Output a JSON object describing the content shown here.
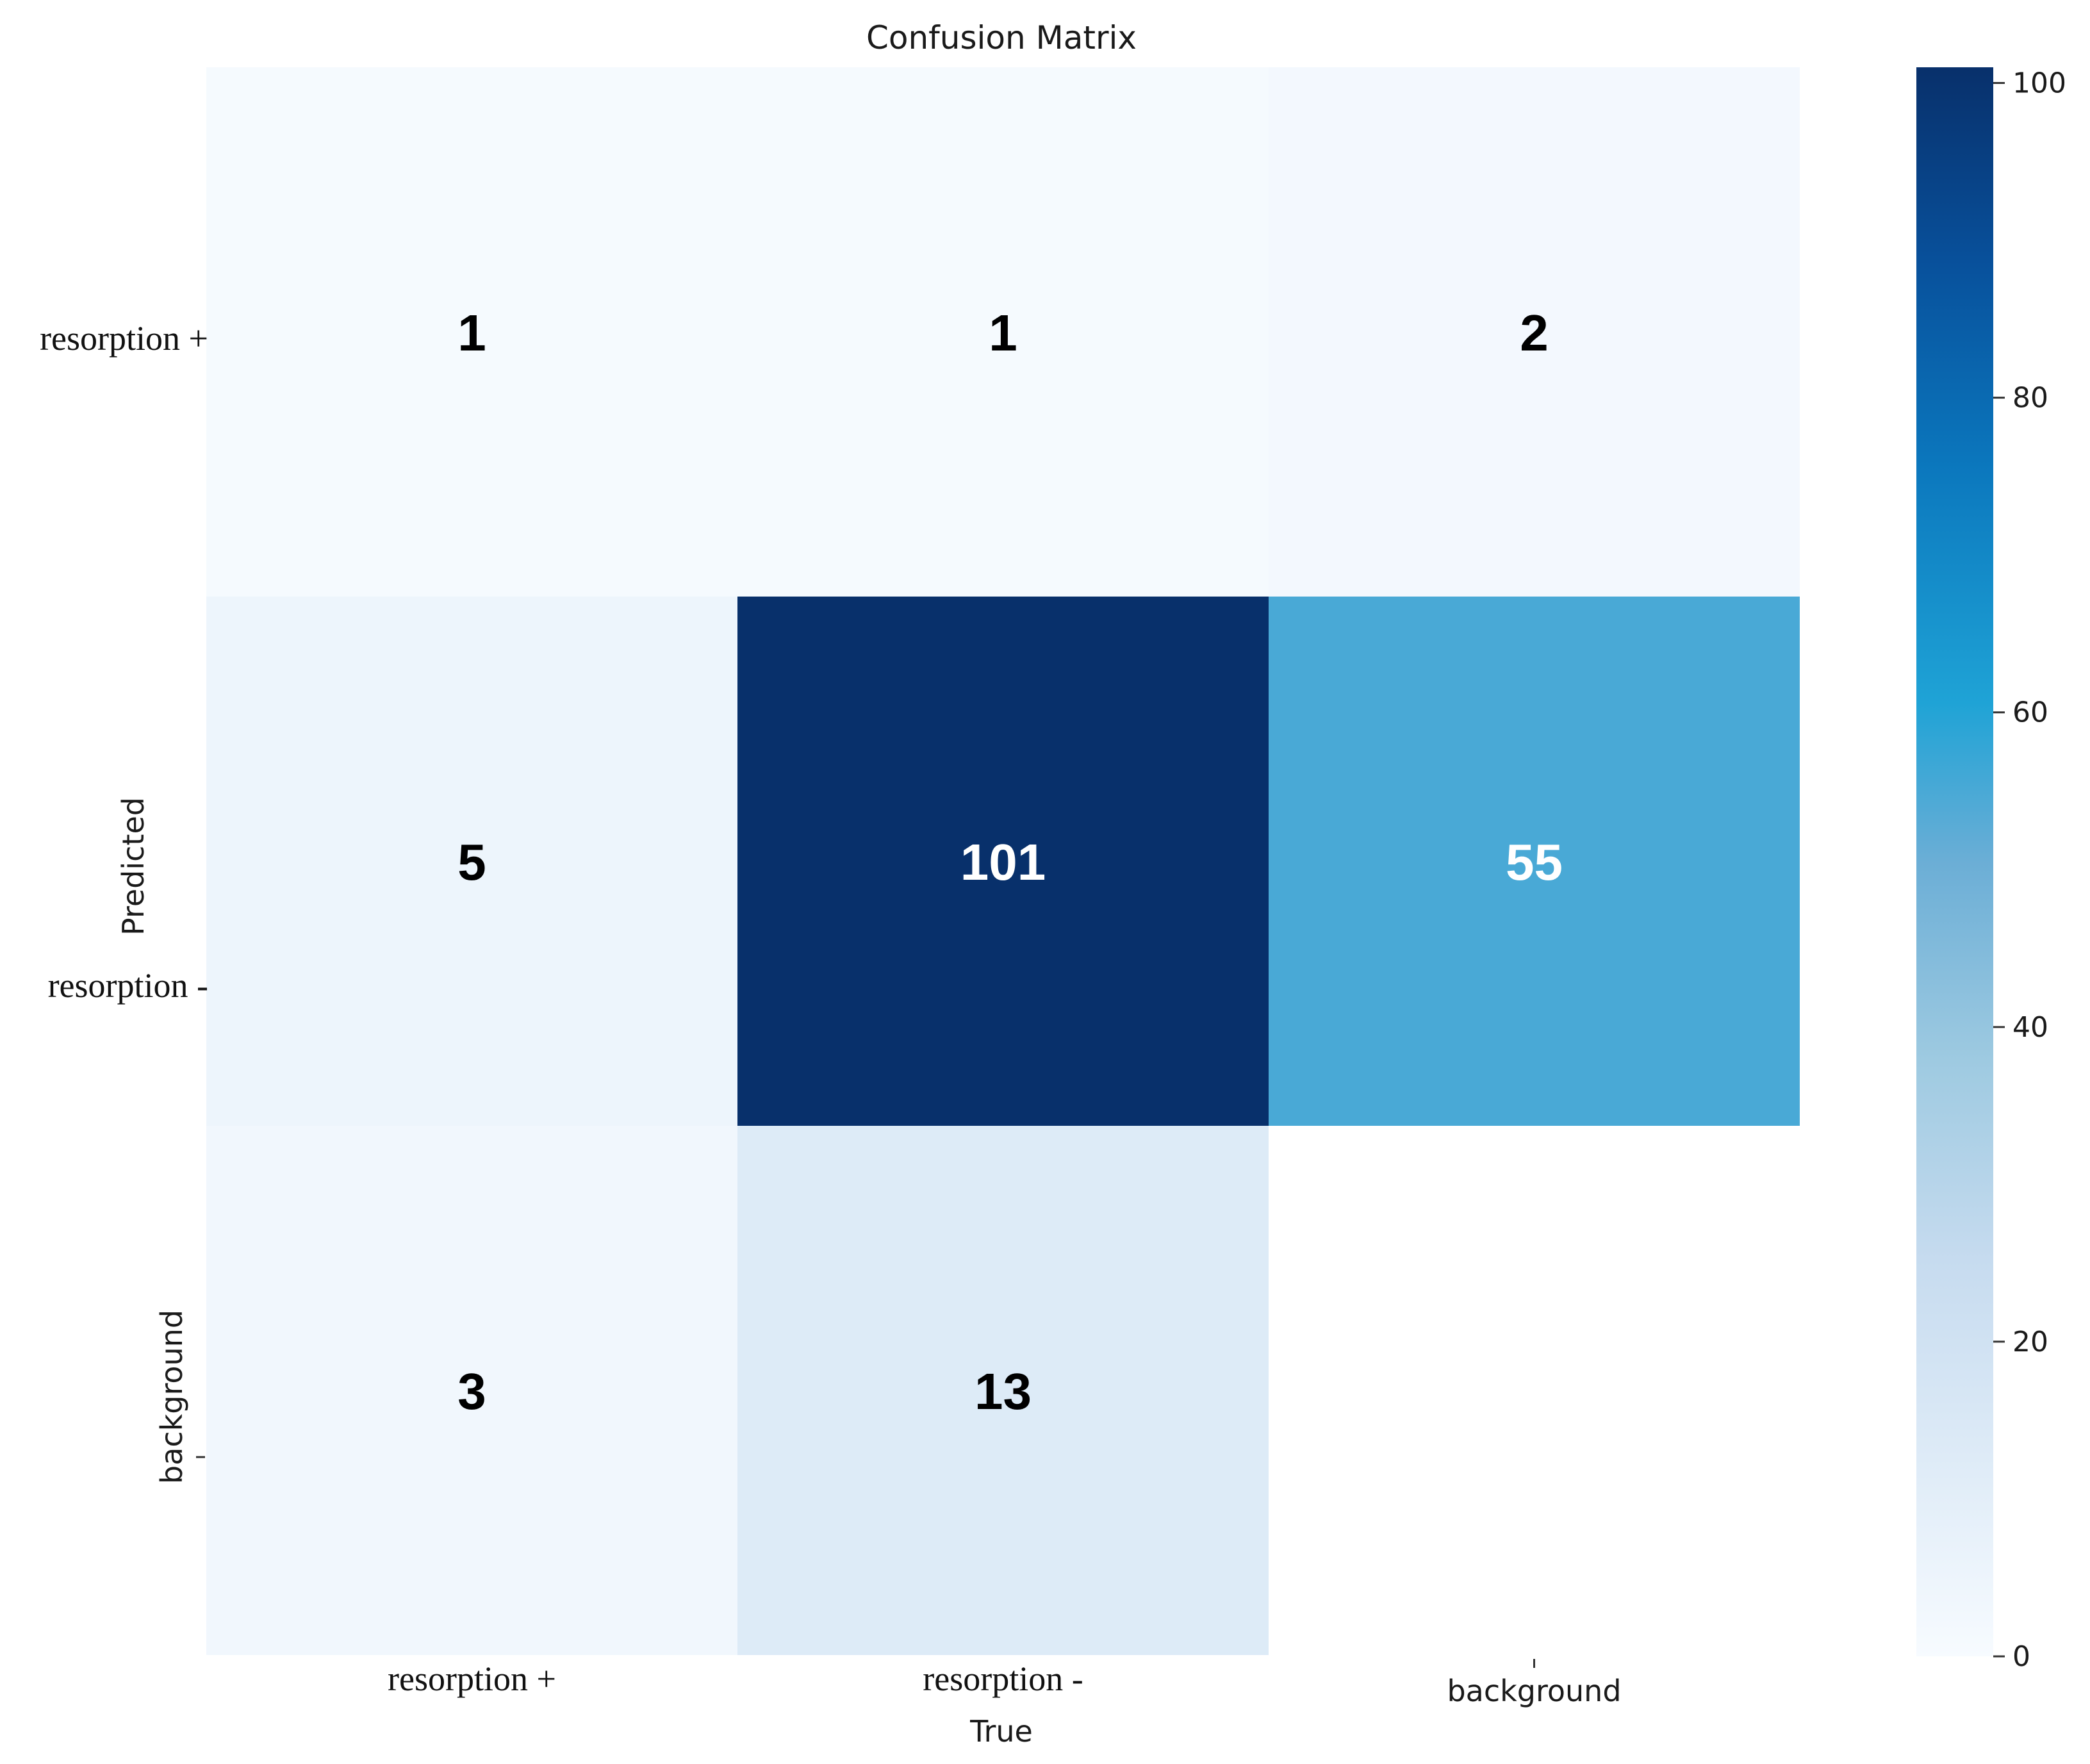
{
  "chart_data": {
    "type": "heatmap",
    "title": "Confusion Matrix",
    "xlabel": "True",
    "ylabel": "Predicted",
    "x_categories": [
      "resorption +",
      "resorption -",
      "background"
    ],
    "y_categories": [
      "resorption +",
      "resorption -",
      "background"
    ],
    "matrix": [
      [
        1,
        1,
        2
      ],
      [
        5,
        101,
        55
      ],
      [
        3,
        13,
        null
      ]
    ],
    "colorbar": {
      "min": 0,
      "max": 101,
      "ticks": [
        "0",
        "20",
        "40",
        "60",
        "80",
        "100"
      ],
      "colormap": "Blues"
    },
    "colors": {
      "low": "#f7fbff",
      "high": "#08306b"
    }
  }
}
